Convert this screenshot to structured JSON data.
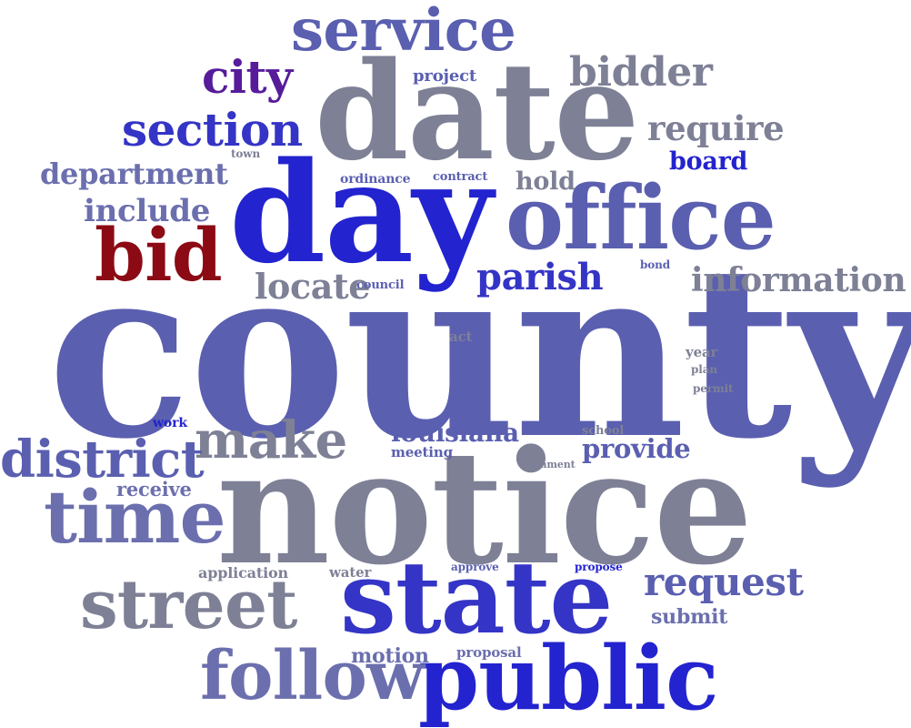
{
  "word_cloud": {
    "words": [
      {
        "key": "service",
        "text": "service",
        "color": "#5a5fb0"
      },
      {
        "key": "city",
        "text": "city",
        "color": "#561c9a"
      },
      {
        "key": "project",
        "text": "project",
        "color": "#5a5fb0"
      },
      {
        "key": "bidder",
        "text": "bidder",
        "color": "#7e8096"
      },
      {
        "key": "date",
        "text": "date",
        "color": "#7e8096"
      },
      {
        "key": "section",
        "text": "section",
        "color": "#3434c6"
      },
      {
        "key": "require",
        "text": "require",
        "color": "#7e8096"
      },
      {
        "key": "town",
        "text": "town",
        "color": "#7e8096"
      },
      {
        "key": "board",
        "text": "board",
        "color": "#2323cf"
      },
      {
        "key": "department",
        "text": "department",
        "color": "#6b6fae"
      },
      {
        "key": "ordinance",
        "text": "ordinance",
        "color": "#5a5fb0"
      },
      {
        "key": "contract",
        "text": "contract",
        "color": "#5a5fb0"
      },
      {
        "key": "hold",
        "text": "hold",
        "color": "#7e8096"
      },
      {
        "key": "day",
        "text": "day",
        "color": "#2323cf"
      },
      {
        "key": "include",
        "text": "include",
        "color": "#6b6fae"
      },
      {
        "key": "office",
        "text": "office",
        "color": "#5a5fb0"
      },
      {
        "key": "bid",
        "text": "bid",
        "color": "#8c0a14"
      },
      {
        "key": "parish",
        "text": "parish",
        "color": "#3434c6"
      },
      {
        "key": "bond",
        "text": "bond",
        "color": "#5a5fb0"
      },
      {
        "key": "information",
        "text": "information",
        "color": "#7e8096"
      },
      {
        "key": "locate",
        "text": "locate",
        "color": "#7e8096"
      },
      {
        "key": "council",
        "text": "council",
        "color": "#5a5fb0"
      },
      {
        "key": "county",
        "text": "county",
        "color": "#5a5fb0"
      },
      {
        "key": "act",
        "text": "act",
        "color": "#7e8096"
      },
      {
        "key": "year",
        "text": "year",
        "color": "#7e8096"
      },
      {
        "key": "plan",
        "text": "plan",
        "color": "#7e8096"
      },
      {
        "key": "permit",
        "text": "permit",
        "color": "#7e8096"
      },
      {
        "key": "work",
        "text": "work",
        "color": "#2323cf"
      },
      {
        "key": "make",
        "text": "make",
        "color": "#7e8096"
      },
      {
        "key": "louisiana",
        "text": "louisiana",
        "color": "#5a5fb0"
      },
      {
        "key": "school",
        "text": "school",
        "color": "#7e8096"
      },
      {
        "key": "meeting",
        "text": "meeting",
        "color": "#5a5fb0"
      },
      {
        "key": "provide",
        "text": "provide",
        "color": "#5a5fb0"
      },
      {
        "key": "district",
        "text": "district",
        "color": "#5a5fb0"
      },
      {
        "key": "comment",
        "text": "comment",
        "color": "#7e8096"
      },
      {
        "key": "receive",
        "text": "receive",
        "color": "#6b6fae"
      },
      {
        "key": "time",
        "text": "time",
        "color": "#6b6fae"
      },
      {
        "key": "notice",
        "text": "notice",
        "color": "#7e8096"
      },
      {
        "key": "application",
        "text": "application",
        "color": "#7e8096"
      },
      {
        "key": "water",
        "text": "water",
        "color": "#7e8096"
      },
      {
        "key": "approve",
        "text": "approve",
        "color": "#5a5fb0"
      },
      {
        "key": "propose",
        "text": "propose",
        "color": "#2323cf"
      },
      {
        "key": "request",
        "text": "request",
        "color": "#5a5fb0"
      },
      {
        "key": "street",
        "text": "street",
        "color": "#7e8096"
      },
      {
        "key": "state",
        "text": "state",
        "color": "#3434c6"
      },
      {
        "key": "submit",
        "text": "submit",
        "color": "#6b6fae"
      },
      {
        "key": "motion",
        "text": "motion",
        "color": "#6b6fae"
      },
      {
        "key": "proposal",
        "text": "proposal",
        "color": "#6b6fae"
      },
      {
        "key": "follow",
        "text": "follow",
        "color": "#6b6fae"
      },
      {
        "key": "public",
        "text": "public",
        "color": "#2323cf"
      }
    ]
  }
}
